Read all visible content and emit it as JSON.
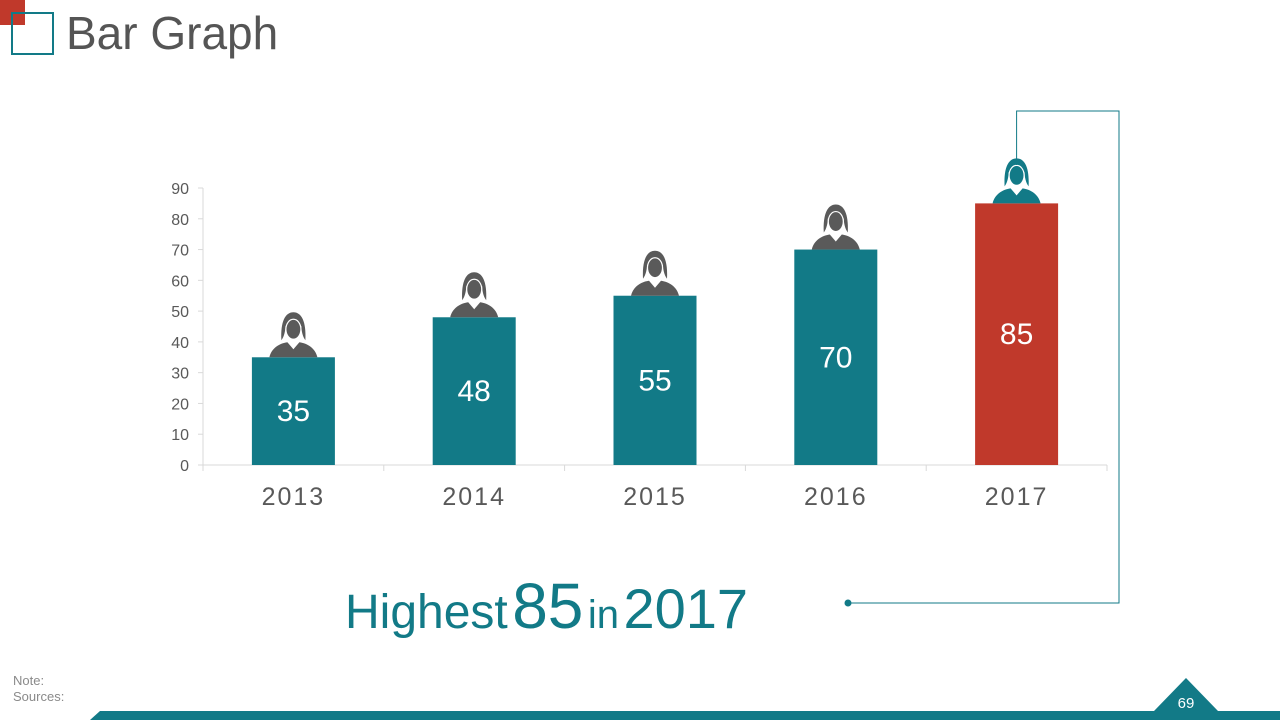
{
  "slide": {
    "title": "Bar Graph",
    "callout": {
      "word1": "Highest",
      "value": "85",
      "word2": "in",
      "year": "2017"
    },
    "note_label": "Note:",
    "sources_label": "Sources:",
    "page_number": "69"
  },
  "colors": {
    "teal": "#127a87",
    "highlight": "#c0392b",
    "icon": "#5a5a5a",
    "title_text": "#555555"
  },
  "icons": {
    "bar_top": "businesswoman-icon",
    "logo": "square-outline-icon"
  },
  "chart_data": {
    "type": "bar",
    "categories": [
      "2013",
      "2014",
      "2015",
      "2016",
      "2017"
    ],
    "values": [
      35,
      48,
      55,
      70,
      85
    ],
    "data_labels": [
      "35",
      "48",
      "55",
      "70",
      "85"
    ],
    "highlight_index": 4,
    "ylim": [
      0,
      90
    ],
    "yticks": [
      "0",
      "10",
      "20",
      "30",
      "40",
      "50",
      "60",
      "70",
      "80",
      "90"
    ],
    "title": "",
    "xlabel": "",
    "ylabel": "",
    "grid": false,
    "legend": "none"
  }
}
